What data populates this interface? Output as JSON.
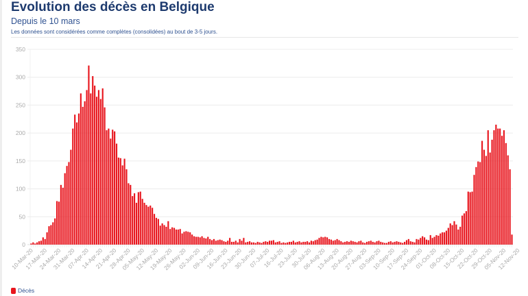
{
  "header": {
    "title": "Evolution des décès en Belgique",
    "subtitle": "Depuis le 10 mars",
    "note": "Les données sont considérées comme complètes (consolidées) au bout de 3-5 jours."
  },
  "colors": {
    "bar": "#e8161e",
    "title": "#1d3a6e",
    "grid": "#ececec"
  },
  "chart_data": {
    "type": "bar",
    "title": "Evolution des décès en Belgique",
    "subtitle": "Depuis le 10 mars",
    "xlabel": "",
    "ylabel": "",
    "ylim": [
      0,
      350
    ],
    "yticks": [
      0,
      50,
      100,
      150,
      200,
      250,
      300,
      350
    ],
    "grid": true,
    "legend_position": "bottom-left",
    "start_date": "10-Mar-20",
    "x_tick_labels": [
      "10-Mar-20",
      "17-Mar-20",
      "24-Mar-20",
      "31-Mar-20",
      "07-Apr-20",
      "14-Apr-20",
      "21-Apr-20",
      "28-Apr-20",
      "05-May-20",
      "12-May-20",
      "19-May-20",
      "26-May-20",
      "02-Jun-20",
      "09-Jun-20",
      "16-Jun-20",
      "23-Jun-20",
      "30-Jun-20",
      "07-Jul-20",
      "16-Jul-20",
      "23-Jul-20",
      "30-Jul-20",
      "06-Aug-20",
      "13-Aug-20",
      "20-Aug-20",
      "27-Aug-20",
      "03-Sep-20",
      "10-Sep-20",
      "17-Sep-20",
      "24-Sep-20",
      "01-Oct-20",
      "08-Oct-20",
      "15-Oct-20",
      "22-Oct-20",
      "29-Oct-20",
      "05-Nov-20",
      "12-Nov-20"
    ],
    "series": [
      {
        "name": "Décès",
        "values": [
          2,
          4,
          2,
          4,
          6,
          7,
          13,
          10,
          22,
          33,
          35,
          40,
          47,
          78,
          77,
          107,
          102,
          128,
          141,
          148,
          170,
          208,
          233,
          219,
          235,
          271,
          247,
          257,
          277,
          321,
          271,
          302,
          285,
          265,
          277,
          261,
          280,
          246,
          205,
          208,
          190,
          206,
          203,
          181,
          156,
          155,
          142,
          154,
          135,
          110,
          107,
          87,
          92,
          75,
          94,
          95,
          82,
          75,
          71,
          68,
          70,
          66,
          55,
          48,
          46,
          34,
          38,
          35,
          32,
          42,
          28,
          31,
          30,
          27,
          27,
          28,
          20,
          23,
          24,
          23,
          22,
          18,
          15,
          14,
          14,
          13,
          15,
          12,
          11,
          14,
          10,
          8,
          10,
          7,
          8,
          9,
          8,
          6,
          5,
          7,
          12,
          5,
          5,
          7,
          4,
          10,
          7,
          12,
          4,
          5,
          6,
          4,
          4,
          3,
          5,
          4,
          3,
          5,
          6,
          5,
          7,
          7,
          8,
          4,
          5,
          6,
          3,
          4,
          3,
          4,
          5,
          5,
          7,
          4,
          5,
          6,
          4,
          5,
          5,
          6,
          4,
          7,
          6,
          8,
          9,
          12,
          14,
          13,
          14,
          13,
          10,
          9,
          7,
          8,
          10,
          8,
          6,
          4,
          5,
          6,
          5,
          7,
          6,
          5,
          4,
          6,
          7,
          4,
          3,
          5,
          6,
          7,
          5,
          4,
          6,
          7,
          5,
          4,
          3,
          3,
          5,
          6,
          4,
          5,
          6,
          5,
          4,
          3,
          5,
          8,
          10,
          6,
          5,
          4,
          10,
          9,
          12,
          15,
          13,
          9,
          8,
          17,
          12,
          14,
          17,
          16,
          20,
          22,
          22,
          25,
          30,
          38,
          35,
          42,
          36,
          27,
          32,
          52,
          56,
          60,
          95,
          94,
          95,
          125,
          139,
          149,
          148,
          186,
          170,
          159,
          205,
          165,
          188,
          205,
          215,
          208,
          208,
          195,
          205,
          182,
          160,
          135,
          18
        ]
      }
    ],
    "legend": [
      "Décès"
    ]
  }
}
